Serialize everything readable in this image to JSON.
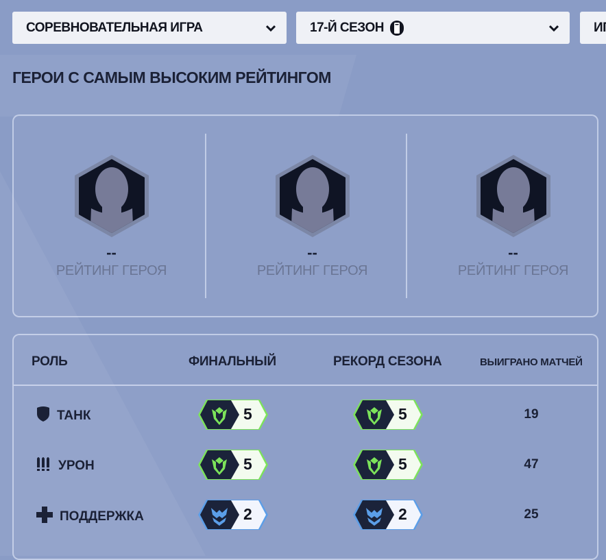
{
  "filters": [
    {
      "label": "СОРЕВНОВАТЕЛЬНАЯ ИГРА",
      "icon": "chevron-down-icon"
    },
    {
      "label": "17-Й СЕЗОН",
      "icon": "chevron-down-icon",
      "platform_icon": "console-icon"
    },
    {
      "label": "ИГ"
    }
  ],
  "top_heroes": {
    "title": "ГЕРОИ С САМЫМ ВЫСОКИМ РЕЙТИНГОМ",
    "heroes": [
      {
        "value": "--",
        "caption": "РЕЙТИНГ ГЕРОЯ"
      },
      {
        "value": "--",
        "caption": "РЕЙТИНГ ГЕРОЯ"
      },
      {
        "value": "--",
        "caption": "РЕЙТИНГ ГЕРОЯ"
      }
    ]
  },
  "role_table": {
    "headers": [
      "РОЛЬ",
      "ФИНАЛЬНЫЙ",
      "РЕКОРД СЕЗОНА",
      "ВЫИГРАНО МАТЧЕЙ"
    ],
    "rows": [
      {
        "role": "ТАНК",
        "icon": "shield-icon",
        "final": {
          "tier": "5",
          "color": "#7ce35a"
        },
        "record": {
          "tier": "5",
          "color": "#7ce35a"
        },
        "wins": "19"
      },
      {
        "role": "УРОН",
        "icon": "bullets-icon",
        "final": {
          "tier": "5",
          "color": "#7ce35a"
        },
        "record": {
          "tier": "5",
          "color": "#7ce35a"
        },
        "wins": "47"
      },
      {
        "role": "ПОДДЕРЖКА",
        "icon": "cross-icon",
        "final": {
          "tier": "2",
          "color": "#5b9ee8"
        },
        "record": {
          "tier": "2",
          "color": "#5b9ee8"
        },
        "wins": "25"
      }
    ]
  }
}
